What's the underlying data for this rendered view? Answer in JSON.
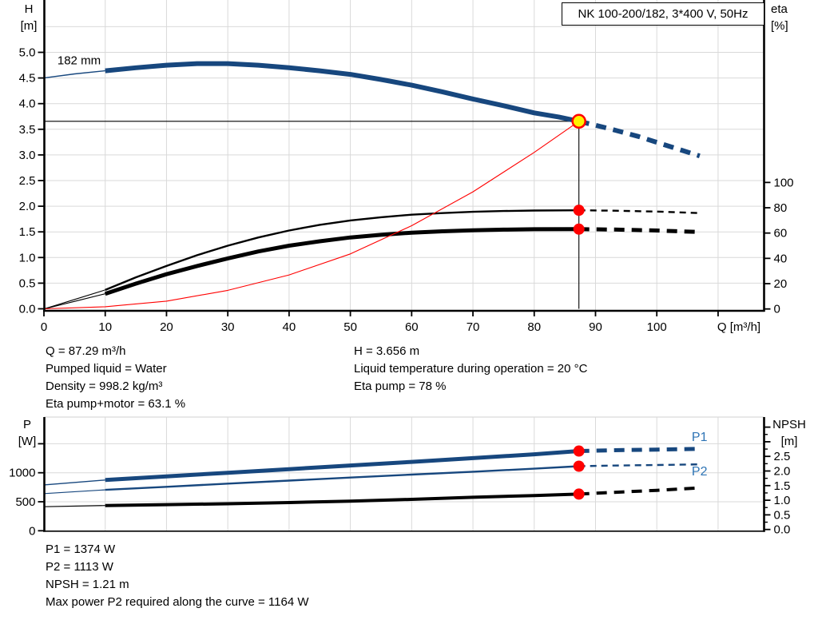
{
  "title_box": {
    "text": "NK 100-200/182, 3*400 V, 50Hz"
  },
  "annotations": {
    "mid_left": [
      "Q = 87.29 m³/h",
      "Pumped liquid = Water",
      "Density = 998.2 kg/m³",
      "Eta pump+motor = 63.1 %"
    ],
    "mid_right": [
      "H = 3.656 m",
      "Liquid temperature during operation = 20 °C",
      "Eta pump = 78 %"
    ],
    "bottom": [
      "P1 = 1374 W",
      "P2 = 1113 W",
      "NPSH = 1.21 m",
      "Max power P2 required along the curve = 1164 W"
    ]
  },
  "colors": {
    "curve_blue": "#17477e",
    "label_blue": "#2e74b5",
    "marker_red": "#ff0000",
    "duty_yellow": "#fff200",
    "grid": "#d9d9d9",
    "axis": "#000000"
  },
  "chart_data": [
    {
      "type": "line",
      "name": "qh-performance-chart",
      "x": {
        "label": "Q [m³/h]",
        "min": 0,
        "max": 117.7,
        "ticks": [
          {
            "v": 0,
            "l": "0"
          },
          {
            "v": 10,
            "l": "10"
          },
          {
            "v": 20,
            "l": "20"
          },
          {
            "v": 30,
            "l": "30"
          },
          {
            "v": 40,
            "l": "40"
          },
          {
            "v": 50,
            "l": "50"
          },
          {
            "v": 60,
            "l": "60"
          },
          {
            "v": 70,
            "l": "70"
          },
          {
            "v": 80,
            "l": "80"
          },
          {
            "v": 90,
            "l": "90"
          },
          {
            "v": 100,
            "l": "100"
          },
          {
            "v": 110,
            "l": ""
          }
        ]
      },
      "left": {
        "label_lines": [
          "H",
          "[m]"
        ],
        "min": 0,
        "max": 5.9,
        "ticks": [
          {
            "v": 0,
            "l": "0.0"
          },
          {
            "v": 0.5,
            "l": "0.5"
          },
          {
            "v": 1,
            "l": "1.0"
          },
          {
            "v": 1.5,
            "l": "1.5"
          },
          {
            "v": 2,
            "l": "2.0"
          },
          {
            "v": 2.5,
            "l": "2.5"
          },
          {
            "v": 3,
            "l": "3.0"
          },
          {
            "v": 3.5,
            "l": "3.5"
          },
          {
            "v": 4,
            "l": "4.0"
          },
          {
            "v": 4.5,
            "l": "4.5"
          },
          {
            "v": 5,
            "l": "5.0"
          }
        ]
      },
      "right": {
        "label_lines": [
          "eta",
          "[%]"
        ],
        "min": 0,
        "max": 120,
        "ticks": [
          {
            "v": 0,
            "l": "0"
          },
          {
            "v": 20,
            "l": "20"
          },
          {
            "v": 40,
            "l": "40"
          },
          {
            "v": 60,
            "l": "60"
          },
          {
            "v": 80,
            "l": "80"
          },
          {
            "v": 100,
            "l": "100"
          }
        ],
        "minor": []
      },
      "grid": {
        "h_values": [
          0.5,
          1,
          1.5,
          2,
          2.5,
          3,
          3.5,
          4,
          4.5,
          5,
          5.5
        ],
        "v_values": [
          10,
          20,
          30,
          40,
          50,
          60,
          70,
          80,
          90,
          100,
          110
        ]
      },
      "series": [
        {
          "name": "head-curve-182mm",
          "axis": "left",
          "color": "#17477e",
          "width": 6,
          "thin_width": 1.4,
          "dash": "13 9",
          "thin": [
            [
              0,
              4.5
            ],
            [
              5,
              4.58
            ],
            [
              10,
              4.64
            ]
          ],
          "solid": [
            [
              10,
              4.64
            ],
            [
              15,
              4.7
            ],
            [
              20,
              4.75
            ],
            [
              25,
              4.78
            ],
            [
              30,
              4.78
            ],
            [
              35,
              4.75
            ],
            [
              40,
              4.7
            ],
            [
              45,
              4.64
            ],
            [
              50,
              4.57
            ],
            [
              55,
              4.47
            ],
            [
              60,
              4.36
            ],
            [
              65,
              4.23
            ],
            [
              70,
              4.09
            ],
            [
              75,
              3.96
            ],
            [
              80,
              3.82
            ],
            [
              84,
              3.74
            ],
            [
              87.29,
              3.656
            ]
          ],
          "dashed": [
            [
              87.29,
              3.656
            ],
            [
              92,
              3.52
            ],
            [
              97,
              3.36
            ],
            [
              102,
              3.17
            ],
            [
              107,
              2.98
            ]
          ]
        },
        {
          "name": "eta-pump-curve",
          "axis": "right",
          "color": "#000000",
          "width": 2.4,
          "thin_width": 1.1,
          "dash": "8 6",
          "thin": [
            [
              0,
              0
            ],
            [
              5,
              7.5
            ],
            [
              10,
              15
            ]
          ],
          "solid": [
            [
              10,
              15
            ],
            [
              15,
              25
            ],
            [
              20,
              34
            ],
            [
              25,
              42.5
            ],
            [
              30,
              50
            ],
            [
              35,
              56.5
            ],
            [
              40,
              62
            ],
            [
              45,
              66.5
            ],
            [
              50,
              70
            ],
            [
              55,
              72.5
            ],
            [
              60,
              74.5
            ],
            [
              65,
              75.8
            ],
            [
              70,
              76.8
            ],
            [
              75,
              77.4
            ],
            [
              80,
              77.8
            ],
            [
              87.29,
              78
            ]
          ],
          "dashed": [
            [
              87.29,
              78
            ],
            [
              93,
              77.7
            ],
            [
              100,
              77
            ],
            [
              107,
              75.8
            ]
          ]
        },
        {
          "name": "eta-pump-motor-curve",
          "axis": "right",
          "color": "#000000",
          "width": 5,
          "thin_width": 1.1,
          "dash": "13 9",
          "thin": [
            [
              0,
              0
            ],
            [
              5,
              6
            ],
            [
              10,
              12
            ]
          ],
          "solid": [
            [
              10,
              12
            ],
            [
              15,
              20
            ],
            [
              20,
              27.5
            ],
            [
              25,
              34
            ],
            [
              30,
              40
            ],
            [
              35,
              45.5
            ],
            [
              40,
              50
            ],
            [
              45,
              53.5
            ],
            [
              50,
              56.5
            ],
            [
              55,
              58.6
            ],
            [
              60,
              60.3
            ],
            [
              65,
              61.4
            ],
            [
              70,
              62.2
            ],
            [
              75,
              62.7
            ],
            [
              80,
              63
            ],
            [
              87.29,
              63.1
            ]
          ],
          "dashed": [
            [
              87.29,
              63.1
            ],
            [
              93,
              62.8
            ],
            [
              100,
              62
            ],
            [
              107,
              60.8
            ]
          ]
        },
        {
          "name": "system-curve",
          "axis": "left",
          "color": "#ff0000",
          "width": 1.1,
          "thin_width": 1.1,
          "dash": "",
          "thin": [],
          "solid": [
            [
              0,
              0
            ],
            [
              10,
              0.04
            ],
            [
              20,
              0.15
            ],
            [
              30,
              0.36
            ],
            [
              40,
              0.66
            ],
            [
              50,
              1.07
            ],
            [
              60,
              1.62
            ],
            [
              70,
              2.28
            ],
            [
              80,
              3.05
            ],
            [
              87.29,
              3.656
            ]
          ],
          "dashed": []
        }
      ],
      "ref_lines": [
        {
          "name": "duty-head-line",
          "type": "h",
          "axis": "left",
          "value": 3.656,
          "q_from": 0,
          "q_to": 87.29
        },
        {
          "name": "duty-flow-line",
          "type": "v",
          "axis": "left",
          "q": 87.29,
          "v_from": 0,
          "v_to": 3.656
        }
      ],
      "points": [
        {
          "name": "duty-point",
          "q": 87.29,
          "axis": "left",
          "v": 3.656,
          "style": "yellow"
        },
        {
          "name": "eta-pump-duty-point",
          "q": 87.29,
          "axis": "right",
          "v": 78,
          "style": "red"
        },
        {
          "name": "eta-pump-motor-duty-point",
          "q": 87.29,
          "axis": "right",
          "v": 63.1,
          "style": "red"
        }
      ],
      "labels": [
        {
          "name": "impeller-diameter-label",
          "text": "182 mm",
          "q": 2.2,
          "axis": "left",
          "v": 4.77,
          "color": "#000000",
          "size": 15
        }
      ]
    },
    {
      "type": "line",
      "name": "power-npsh-chart",
      "x": {
        "label": "",
        "min": 0,
        "max": 117.7,
        "ticks": []
      },
      "left": {
        "label_lines": [
          "P",
          "[W]"
        ],
        "min": 0,
        "max": 1950,
        "ticks": [
          {
            "v": 0,
            "l": "0"
          },
          {
            "v": 500,
            "l": "500"
          },
          {
            "v": 1000,
            "l": "1000"
          },
          {
            "v": 1500,
            "l": ""
          }
        ]
      },
      "right": {
        "label_lines": [
          "NPSH",
          "[m]"
        ],
        "min": 0,
        "max": 3.85,
        "ticks": [
          {
            "v": 0,
            "l": "0.0"
          },
          {
            "v": 0.5,
            "l": "0.5"
          },
          {
            "v": 1,
            "l": "1.0"
          },
          {
            "v": 1.5,
            "l": "1.5"
          },
          {
            "v": 2,
            "l": "2.0"
          },
          {
            "v": 2.5,
            "l": "2.5"
          },
          {
            "v": 3,
            "l": ""
          },
          {
            "v": 3.5,
            "l": ""
          }
        ],
        "minor": [
          0.25,
          0.75,
          1.25,
          1.75,
          2.25,
          2.75,
          3.25
        ]
      },
      "grid": {
        "h_values": [
          500,
          1000,
          1500
        ],
        "v_values": [
          10,
          20,
          30,
          40,
          50,
          60,
          70,
          80,
          90,
          100,
          110
        ]
      },
      "series": [
        {
          "name": "p1-curve",
          "axis": "left",
          "color": "#17477e",
          "width": 5,
          "thin_width": 1.4,
          "dash": "13 9",
          "thin": [
            [
              0,
              790
            ],
            [
              10,
              875
            ]
          ],
          "solid": [
            [
              10,
              875
            ],
            [
              20,
              938
            ],
            [
              30,
              1000
            ],
            [
              40,
              1062
            ],
            [
              50,
              1125
            ],
            [
              60,
              1188
            ],
            [
              70,
              1252
            ],
            [
              80,
              1318
            ],
            [
              87.29,
              1374
            ]
          ],
          "dashed": [
            [
              87.29,
              1374
            ],
            [
              93,
              1388
            ],
            [
              100,
              1400
            ],
            [
              107,
              1412
            ]
          ]
        },
        {
          "name": "p2-curve",
          "axis": "left",
          "color": "#17477e",
          "width": 2.4,
          "thin_width": 1.2,
          "dash": "8 6",
          "thin": [
            [
              0,
              640
            ],
            [
              10,
              705
            ]
          ],
          "solid": [
            [
              10,
              705
            ],
            [
              20,
              758
            ],
            [
              30,
              812
            ],
            [
              40,
              865
            ],
            [
              50,
              917
            ],
            [
              60,
              968
            ],
            [
              70,
              1018
            ],
            [
              80,
              1070
            ],
            [
              87.29,
              1113
            ]
          ],
          "dashed": [
            [
              87.29,
              1113
            ],
            [
              93,
              1124
            ],
            [
              100,
              1134
            ],
            [
              107,
              1145
            ]
          ]
        },
        {
          "name": "npsh-curve",
          "axis": "right",
          "color": "#000000",
          "width": 4,
          "thin_width": 1.2,
          "dash": "13 9",
          "thin": [
            [
              0,
              0.78
            ],
            [
              10,
              0.82
            ]
          ],
          "solid": [
            [
              10,
              0.82
            ],
            [
              20,
              0.85
            ],
            [
              30,
              0.88
            ],
            [
              40,
              0.92
            ],
            [
              50,
              0.97
            ],
            [
              60,
              1.03
            ],
            [
              70,
              1.1
            ],
            [
              80,
              1.16
            ],
            [
              87.29,
              1.21
            ]
          ],
          "dashed": [
            [
              87.29,
              1.21
            ],
            [
              93,
              1.27
            ],
            [
              100,
              1.34
            ],
            [
              107,
              1.42
            ]
          ]
        }
      ],
      "ref_lines": [],
      "points": [
        {
          "name": "p1-duty-point",
          "q": 87.29,
          "axis": "left",
          "v": 1374,
          "style": "red"
        },
        {
          "name": "p2-duty-point",
          "q": 87.29,
          "axis": "left",
          "v": 1113,
          "style": "red"
        },
        {
          "name": "npsh-duty-point",
          "q": 87.29,
          "axis": "right",
          "v": 1.21,
          "style": "red"
        }
      ],
      "labels": [
        {
          "name": "p1-curve-label",
          "text": "P1",
          "q": 105.7,
          "axis": "left",
          "v": 1547,
          "color": "#2e74b5",
          "size": 16
        },
        {
          "name": "p2-curve-label",
          "text": "P2",
          "q": 105.7,
          "axis": "left",
          "v": 952,
          "color": "#2e74b5",
          "size": 16
        }
      ]
    }
  ]
}
